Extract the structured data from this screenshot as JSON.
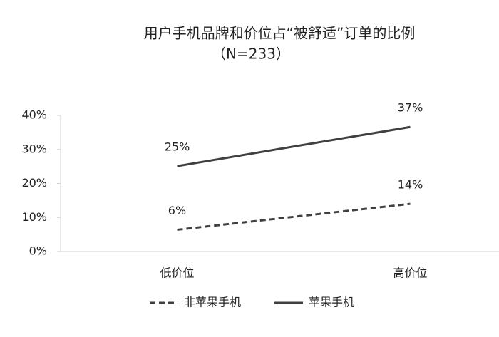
{
  "chart_data": {
    "type": "line",
    "title": [
      "用户手机品牌和价位占“被舒适”订单的比例",
      "（N=233）"
    ],
    "categories": [
      "低价位",
      "高价位"
    ],
    "series": [
      {
        "name": "非苹果手机",
        "color": "#404040",
        "line_style": "dashed",
        "values": [
          6.4,
          14.0
        ],
        "value_labels": [
          "6%",
          "14%"
        ]
      },
      {
        "name": "苹果手机",
        "color": "#404040",
        "line_style": "solid",
        "values": [
          25.1,
          36.6
        ],
        "value_labels": [
          "25%",
          "37%"
        ]
      }
    ],
    "ylim": [
      0,
      40
    ],
    "yticks": [
      {
        "value": 0,
        "label": "0%"
      },
      {
        "value": 10,
        "label": "10%"
      },
      {
        "value": 20,
        "label": "20%"
      },
      {
        "value": 30,
        "label": "30%"
      },
      {
        "value": 40,
        "label": "40%"
      }
    ],
    "legend": "bottom"
  }
}
